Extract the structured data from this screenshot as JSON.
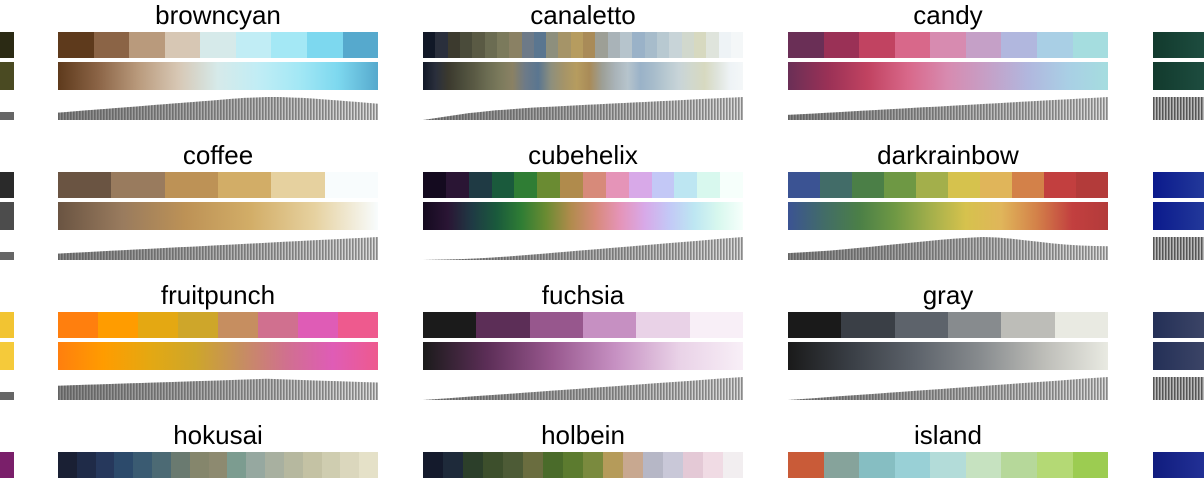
{
  "palettes": [
    {
      "name": "browncyan",
      "colors": [
        "#5e3a1c",
        "#8b6446",
        "#b99a7c",
        "#d7c7b4",
        "#d6eaea",
        "#c1edf5",
        "#a4e8f5",
        "#7dd8ef",
        "#56a9cd"
      ],
      "lum": [
        0.32,
        0.34,
        0.36,
        0.38,
        0.4,
        0.42,
        0.44,
        0.46,
        0.48,
        0.5,
        0.52,
        0.54,
        0.56,
        0.58,
        0.6,
        0.62,
        0.64,
        0.66,
        0.68,
        0.7,
        0.72,
        0.74,
        0.76,
        0.78,
        0.8,
        0.82,
        0.84,
        0.86,
        0.88,
        0.9,
        0.92,
        0.94,
        0.96,
        0.97,
        0.98,
        0.99,
        1.0,
        1.0,
        1.0,
        0.99,
        0.98,
        0.97,
        0.96,
        0.95,
        0.93,
        0.91,
        0.89,
        0.87,
        0.85,
        0.83,
        0.81,
        0.79,
        0.77,
        0.75,
        0.73,
        0.71
      ]
    },
    {
      "name": "canaletto",
      "colors": [
        "#111827",
        "#2a2f3c",
        "#3c3a2e",
        "#4a4b3a",
        "#5a5a44",
        "#6b6c52",
        "#7b7a5c",
        "#8a8164",
        "#6d7a88",
        "#5a7690",
        "#8d8f7d",
        "#a59468",
        "#b69c5f",
        "#a98b58",
        "#9d9f96",
        "#a9b3b8",
        "#b6c4cc",
        "#9ab2c8",
        "#a7bccb",
        "#b8c9d1",
        "#c8d4d8",
        "#d1d8cd",
        "#d7d9c0",
        "#dfe4dc",
        "#eef3f6",
        "#f4f7f8"
      ],
      "lum": [
        0.0,
        0.06,
        0.12,
        0.18,
        0.24,
        0.3,
        0.34,
        0.38,
        0.42,
        0.45,
        0.48,
        0.51,
        0.54,
        0.56,
        0.58,
        0.6,
        0.62,
        0.64,
        0.66,
        0.68,
        0.7,
        0.72,
        0.74,
        0.76,
        0.78,
        0.8,
        0.82,
        0.84,
        0.86,
        0.88,
        0.9,
        0.92,
        0.94,
        0.96,
        0.98,
        1.0
      ]
    },
    {
      "name": "candy",
      "colors": [
        "#6a2f56",
        "#9a3156",
        "#c14361",
        "#d8688a",
        "#d78bb0",
        "#c5a0c7",
        "#b1b7de",
        "#a9cfe5",
        "#a5dddf"
      ],
      "lum": [
        0.22,
        0.25,
        0.28,
        0.31,
        0.34,
        0.37,
        0.4,
        0.43,
        0.46,
        0.49,
        0.52,
        0.55,
        0.58,
        0.61,
        0.64,
        0.67,
        0.7,
        0.73,
        0.76,
        0.79,
        0.82,
        0.85,
        0.88,
        0.91,
        0.94,
        0.97,
        1.0
      ]
    },
    {
      "name": "coffee",
      "colors": [
        "#6a5442",
        "#997b5e",
        "#bd9256",
        "#d2ad67",
        "#e6d19f",
        "#f8fcfd"
      ],
      "lum": [
        0.28,
        0.31,
        0.34,
        0.37,
        0.4,
        0.43,
        0.46,
        0.49,
        0.52,
        0.55,
        0.58,
        0.61,
        0.64,
        0.67,
        0.7,
        0.73,
        0.76,
        0.79,
        0.82,
        0.85,
        0.88,
        0.91,
        0.94,
        0.97,
        1.0
      ]
    },
    {
      "name": "cubehelix",
      "colors": [
        "#140a1f",
        "#2a1534",
        "#1f3a44",
        "#1a5a3c",
        "#2f7d34",
        "#6a8b32",
        "#b08b4c",
        "#d78a7a",
        "#e594b8",
        "#d8a9e8",
        "#c3c8f6",
        "#bde6f2",
        "#d8f8ee",
        "#f6fffb"
      ],
      "lum": [
        0.0,
        0.01,
        0.02,
        0.03,
        0.05,
        0.07,
        0.1,
        0.13,
        0.16,
        0.2,
        0.24,
        0.28,
        0.32,
        0.36,
        0.4,
        0.44,
        0.48,
        0.52,
        0.56,
        0.6,
        0.64,
        0.68,
        0.72,
        0.76,
        0.8,
        0.84,
        0.88,
        0.92,
        0.96,
        1.0
      ]
    },
    {
      "name": "darkrainbow",
      "colors": [
        "#3b5393",
        "#426c68",
        "#4b7f47",
        "#6e9844",
        "#a3af4b",
        "#d6c24d",
        "#e0b55a",
        "#d38149",
        "#c23f3f",
        "#b33b3a"
      ],
      "lum": [
        0.3,
        0.33,
        0.37,
        0.41,
        0.46,
        0.52,
        0.58,
        0.64,
        0.7,
        0.76,
        0.82,
        0.88,
        0.93,
        0.97,
        1.0,
        0.98,
        0.93,
        0.86,
        0.79,
        0.72,
        0.67,
        0.63,
        0.61,
        0.6
      ]
    },
    {
      "name": "fruitpunch",
      "colors": [
        "#ff7f0e",
        "#ff9c00",
        "#e4a812",
        "#cea62a",
        "#c68e60",
        "#d0708f",
        "#df5cb6",
        "#ee5a8e"
      ],
      "lum": [
        0.62,
        0.64,
        0.66,
        0.68,
        0.7,
        0.72,
        0.74,
        0.76,
        0.78,
        0.8,
        0.82,
        0.84,
        0.86,
        0.88,
        0.9,
        0.92,
        0.9,
        0.88,
        0.86,
        0.84,
        0.82,
        0.8,
        0.78,
        0.76
      ]
    },
    {
      "name": "fuchsia",
      "colors": [
        "#1b1b1b",
        "#5c2e57",
        "#97578d",
        "#c690c2",
        "#e9d2e7",
        "#f8eff7"
      ],
      "lum": [
        0.0,
        0.04,
        0.08,
        0.12,
        0.16,
        0.2,
        0.24,
        0.28,
        0.32,
        0.36,
        0.4,
        0.44,
        0.48,
        0.52,
        0.56,
        0.6,
        0.64,
        0.68,
        0.72,
        0.76,
        0.8,
        0.84,
        0.88,
        0.92,
        0.96,
        1.0
      ]
    },
    {
      "name": "gray",
      "colors": [
        "#1a1a1a",
        "#3a3f46",
        "#5d636b",
        "#878b8e",
        "#bdbdb8",
        "#e9eae2"
      ],
      "lum": [
        0.0,
        0.04,
        0.08,
        0.12,
        0.16,
        0.2,
        0.24,
        0.28,
        0.32,
        0.36,
        0.4,
        0.44,
        0.48,
        0.52,
        0.56,
        0.6,
        0.64,
        0.68,
        0.72,
        0.76,
        0.8,
        0.84,
        0.88,
        0.92,
        0.96,
        1.0
      ]
    },
    {
      "name": "hokusai",
      "colors": [
        "#1a2034",
        "#1f2b48",
        "#26385c",
        "#2c4a6b",
        "#3a5b72",
        "#4c6a74",
        "#6a7a70",
        "#85866c",
        "#8d8a70",
        "#7c9c90",
        "#96a8a0",
        "#a8b0a0",
        "#b6b89f",
        "#c4c2a4",
        "#cfcdb0",
        "#dbd7bd",
        "#e5e1c8"
      ],
      "lum": [
        0.3,
        0.4,
        0.5,
        0.6,
        0.7,
        0.8,
        0.9,
        1.0
      ]
    },
    {
      "name": "holbein",
      "colors": [
        "#141a2c",
        "#1e2a3a",
        "#2c3f2a",
        "#3d4f2c",
        "#4d5b36",
        "#6a6d3f",
        "#4a6b2a",
        "#5c7b2f",
        "#7a8a3e",
        "#b59b5a",
        "#c8a890",
        "#b6b7c6",
        "#c9c8d8",
        "#e4c9d6",
        "#f0dbe4",
        "#f2eef0"
      ],
      "lum": [
        0.3,
        0.4,
        0.5,
        0.6,
        0.7,
        0.8,
        0.9,
        1.0
      ]
    },
    {
      "name": "island",
      "colors": [
        "#c95b38",
        "#86a39b",
        "#86bec2",
        "#99d0d6",
        "#b3dcd9",
        "#c6e2c0",
        "#b6d89a",
        "#b4d975",
        "#9ccc51"
      ],
      "lum": [
        0.3,
        0.4,
        0.5,
        0.6,
        0.7,
        0.8,
        0.9,
        1.0
      ]
    }
  ],
  "edge_left": [
    [
      "#2b2a14",
      "#4a4a22"
    ],
    [
      "#2a2a2a",
      "#4c4c4c"
    ],
    [
      "#f2c432",
      "#f5ca3a"
    ],
    [
      "#7a1f6a",
      "#8a2a78"
    ]
  ],
  "edge_right": [
    [
      "#123a2d",
      "#1d4c3f"
    ],
    [
      "#0b1a8c",
      "#22389a"
    ],
    [
      "#243057",
      "#3b4466"
    ],
    [
      "#101c7e",
      "#223095"
    ]
  ]
}
